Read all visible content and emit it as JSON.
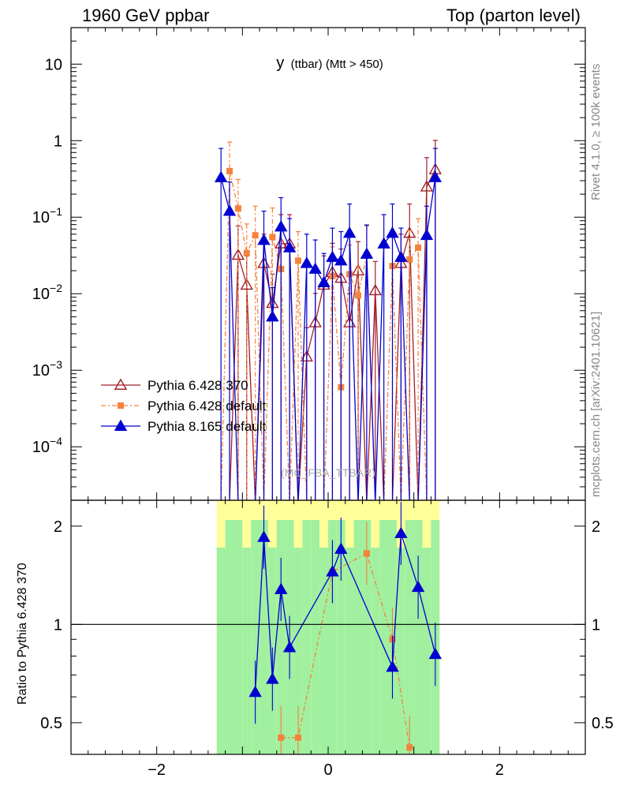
{
  "header": {
    "left": "1960 GeV ppbar",
    "right": "Top (parton level)"
  },
  "side_labels": {
    "rivet": "Rivet 4.1.0, ≥ 100k events",
    "mcplots": "mcplots.cern.ch [arXiv:2401.10621]"
  },
  "colors": {
    "pythia6_370": "#a0202a",
    "pythia6_default": "#f5823c",
    "pythia8": "#0000d0",
    "band_green": "#a0f0a0",
    "band_yellow": "#ffff9a"
  },
  "chart_data": [
    {
      "type": "line",
      "panel": "main",
      "title": "y (ttbar) (Mtt > 450)",
      "title_main": "y",
      "title_sub": "(ttbar) (Mtt > 450)",
      "watermark": "(MC_FBA_TTBAR)",
      "xlim": [
        -3,
        3
      ],
      "ylim": [
        2e-05,
        30
      ],
      "yscale": "log",
      "ytick_labels": [
        {
          "value": 10,
          "base": "10",
          "exp": ""
        },
        {
          "value": 1,
          "base": "1",
          "exp": ""
        },
        {
          "value": 0.1,
          "base": "10",
          "exp": "−1"
        },
        {
          "value": 0.01,
          "base": "10",
          "exp": "−2"
        },
        {
          "value": 0.001,
          "base": "10",
          "exp": "−3"
        },
        {
          "value": 0.0001,
          "base": "10",
          "exp": "−4"
        }
      ],
      "legend": [
        "Pythia 6.428 370",
        "Pythia 6.428 default",
        "Pythia 8.165 default"
      ],
      "legend_position": "lower-left",
      "series": [
        {
          "name": "Pythia 6.428 370",
          "marker": "open-triangle",
          "linestyle": "solid",
          "x": [
            -1.25,
            -1.15,
            -1.05,
            -0.95,
            -0.85,
            -0.75,
            -0.65,
            -0.55,
            -0.45,
            -0.35,
            -0.25,
            -0.15,
            -0.05,
            0.05,
            0.15,
            0.25,
            0.35,
            0.45,
            0.55,
            0.65,
            0.75,
            0.85,
            0.95,
            1.05,
            1.15,
            1.25
          ],
          "y": [
            0,
            0,
            0.032,
            0.013,
            0,
            0.025,
            0.0075,
            0.045,
            0.045,
            0,
            0.0015,
            0.0042,
            0.013,
            0.019,
            0.016,
            0.0042,
            0.02,
            0,
            0.011,
            0,
            0,
            0.025,
            0.062,
            0,
            0.25,
            0.42
          ]
        },
        {
          "name": "Pythia 6.428 default",
          "marker": "square",
          "linestyle": "dashdot",
          "x": [
            -1.25,
            -1.15,
            -1.05,
            -0.95,
            -0.85,
            -0.75,
            -0.65,
            -0.55,
            -0.45,
            -0.35,
            -0.25,
            -0.15,
            -0.05,
            0.05,
            0.15,
            0.25,
            0.35,
            0.45,
            0.55,
            0.65,
            0.75,
            0.85,
            0.95,
            1.05,
            1.15,
            1.25
          ],
          "y": [
            0,
            0.4,
            0.13,
            0.034,
            0.058,
            0,
            0.055,
            0.021,
            0,
            0.027,
            0,
            0,
            0,
            0.017,
            0.0006,
            0.018,
            0.0095,
            0.032,
            0,
            0,
            0.023,
            0,
            0.028,
            0.04,
            0,
            0
          ]
        },
        {
          "name": "Pythia 8.165 default",
          "marker": "filled-triangle",
          "linestyle": "solid",
          "x": [
            -1.25,
            -1.15,
            -1.05,
            -0.95,
            -0.85,
            -0.75,
            -0.65,
            -0.55,
            -0.45,
            -0.35,
            -0.25,
            -0.15,
            -0.05,
            0.05,
            0.15,
            0.25,
            0.35,
            0.45,
            0.55,
            0.65,
            0.75,
            0.85,
            0.95,
            1.05,
            1.15,
            1.25
          ],
          "y": [
            0.33,
            0.12,
            0,
            0,
            0,
            0.05,
            0.005,
            0.075,
            0.04,
            0,
            0.025,
            0.021,
            0.014,
            0.03,
            0.027,
            0.062,
            0,
            0.033,
            0,
            0.045,
            0.062,
            0.03,
            0,
            0,
            0.058,
            0.33
          ]
        }
      ]
    },
    {
      "type": "line",
      "panel": "ratio",
      "ylabel": "Ratio to Pythia 6.428 370",
      "xlabel": "",
      "xlim": [
        -3,
        3
      ],
      "ylim": [
        0.4,
        2.4
      ],
      "yscale": "log",
      "reference_line": 1,
      "xtick_labels": [
        "−2",
        "0",
        "2"
      ],
      "ytick_labels": [
        "2",
        "1",
        "0.5"
      ],
      "series": [
        {
          "name": "Pythia 6.428 default",
          "marker": "square",
          "x": [
            -0.55,
            -0.35,
            0.05,
            0.45,
            0.75,
            0.95
          ],
          "y": [
            0.45,
            0.45,
            1.45,
            1.65,
            0.9,
            0.42
          ]
        },
        {
          "name": "Pythia 8.165 default",
          "marker": "filled-triangle",
          "x": [
            -0.85,
            -0.75,
            -0.65,
            -0.55,
            -0.45,
            0.05,
            0.15,
            0.75,
            0.85,
            1.05,
            1.25
          ],
          "y": [
            0.62,
            1.85,
            0.68,
            1.28,
            0.85,
            1.45,
            1.7,
            0.74,
            1.9,
            1.3,
            0.81
          ]
        }
      ]
    }
  ]
}
